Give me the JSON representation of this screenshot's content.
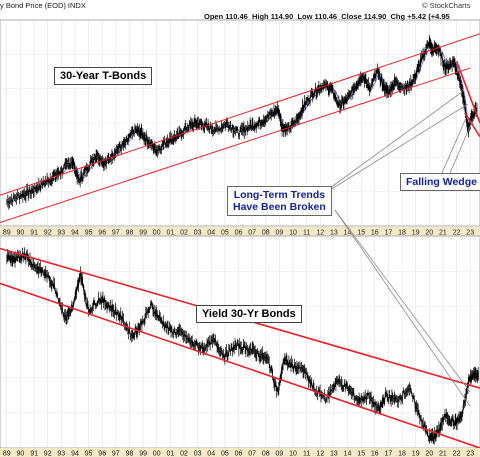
{
  "header": {
    "title": "y Bond Price (EOD) INDX",
    "logo": "© StockCharts",
    "open_label": "Open",
    "open": "110.46",
    "high_label": "High",
    "high": "114.90",
    "low_label": "Low",
    "low": "110.46",
    "close_label": "Close",
    "close": "114.90",
    "chg_label": "Chg",
    "chg": "+5.42 (+4.95"
  },
  "annotations": {
    "bonds_label": "30-Year T-Bonds",
    "yield_label": "Yield 30-Yr Bonds",
    "trend_line1": "Long-Term Trends",
    "trend_line2": "Have Been Broken",
    "wedge": "Falling Wedge"
  },
  "colors": {
    "price": "#000000",
    "channel": "#e8202a",
    "ma": "#7b7bd8",
    "axis_band": "#f3e9c6",
    "annot_text": "#12239e"
  },
  "chart_data": [
    {
      "type": "line",
      "title": "30-Year T-Bonds",
      "tick_labels": [
        "89",
        "90",
        "91",
        "92",
        "93",
        "94",
        "95",
        "96",
        "97",
        "98",
        "99",
        "00",
        "01",
        "02",
        "03",
        "04",
        "05",
        "06",
        "07",
        "08",
        "09",
        "10",
        "11",
        "12",
        "13",
        "14",
        "15",
        "16",
        "17",
        "18",
        "19",
        "20",
        "21",
        "22",
        "23"
      ],
      "x": [
        1989.0,
        1990.0,
        1990.8,
        1991.5,
        1992.3,
        1993.0,
        1993.8,
        1994.3,
        1994.9,
        1995.6,
        1996.2,
        1997.0,
        1997.7,
        1998.4,
        1998.9,
        1999.5,
        2000.0,
        2000.8,
        2001.5,
        2002.3,
        2003.0,
        2003.6,
        2004.4,
        2005.2,
        2006.0,
        2006.8,
        2007.5,
        2008.2,
        2008.9,
        2009.2,
        2009.6,
        2010.3,
        2010.8,
        2011.5,
        2012.2,
        2012.8,
        2013.4,
        2014.0,
        2014.6,
        2015.1,
        2015.6,
        2016.2,
        2016.6,
        2017.0,
        2017.5,
        2018.3,
        2018.9,
        2019.4,
        2020.0,
        2020.2,
        2020.6,
        2021.2,
        2021.8,
        2022.2,
        2022.6,
        2022.85,
        2023.1,
        2023.5
      ],
      "y": [
        94,
        98,
        100,
        104,
        108,
        112,
        118,
        106,
        114,
        122,
        116,
        124,
        128,
        136,
        134,
        128,
        124,
        130,
        132,
        138,
        140,
        138,
        136,
        140,
        134,
        138,
        140,
        144,
        148,
        138,
        136,
        142,
        150,
        158,
        162,
        160,
        150,
        154,
        162,
        168,
        160,
        170,
        162,
        158,
        164,
        160,
        166,
        176,
        188,
        182,
        184,
        172,
        176,
        166,
        150,
        136,
        144,
        148
      ],
      "ylabel": ""
    },
    {
      "type": "line",
      "title": "Yield 30-Yr Bonds",
      "tick_labels": [
        "89",
        "90",
        "91",
        "92",
        "93",
        "94",
        "95",
        "96",
        "97",
        "98",
        "99",
        "00",
        "01",
        "02",
        "03",
        "04",
        "05",
        "06",
        "07",
        "08",
        "09",
        "10",
        "11",
        "12",
        "13",
        "14",
        "15",
        "16",
        "17",
        "18",
        "19",
        "20",
        "21",
        "22",
        "23"
      ],
      "x": [
        1989.0,
        1989.6,
        1990.3,
        1991.0,
        1991.8,
        1992.5,
        1993.3,
        1993.9,
        1994.4,
        1995.0,
        1995.8,
        1996.5,
        1997.3,
        1998.2,
        1998.8,
        1999.6,
        2000.2,
        2001.0,
        2001.8,
        2002.6,
        2003.4,
        2004.2,
        2005.0,
        2005.8,
        2006.6,
        2007.4,
        2008.2,
        2008.9,
        2009.3,
        2010.0,
        2010.8,
        2011.6,
        2012.5,
        2013.2,
        2014.0,
        2014.8,
        2015.5,
        2016.3,
        2016.8,
        2017.6,
        2018.5,
        2019.3,
        2020.0,
        2020.5,
        2021.2,
        2021.9,
        2022.4,
        2022.9,
        2023.3,
        2023.6
      ],
      "y": [
        8.6,
        8.4,
        8.7,
        8.2,
        7.9,
        7.4,
        6.1,
        6.6,
        7.9,
        6.4,
        6.9,
        6.6,
        6.2,
        5.4,
        5.8,
        6.6,
        6.1,
        5.6,
        5.5,
        5.1,
        4.9,
        5.2,
        4.6,
        5.0,
        4.9,
        4.7,
        4.4,
        3.1,
        4.4,
        4.2,
        4.0,
        3.2,
        2.9,
        3.6,
        3.3,
        2.8,
        3.0,
        2.4,
        3.0,
        2.8,
        3.3,
        2.2,
        1.3,
        1.4,
        2.2,
        1.9,
        2.2,
        3.6,
        3.9,
        3.8
      ],
      "ylabel": ""
    }
  ]
}
